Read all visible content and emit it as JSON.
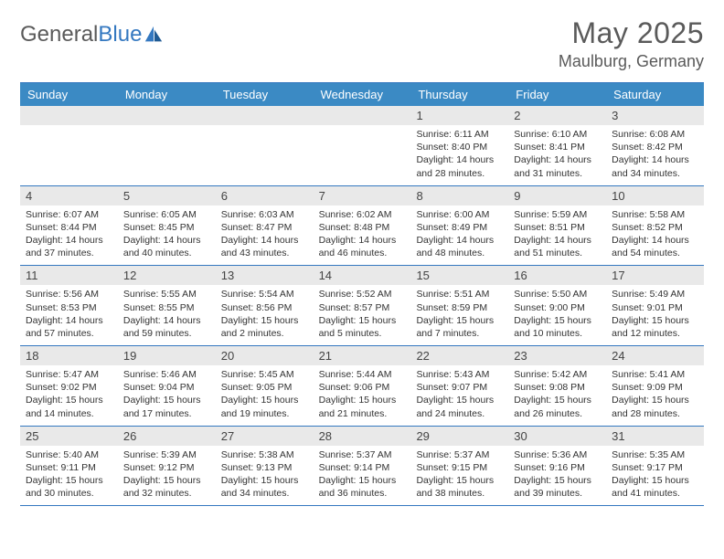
{
  "logo": {
    "part1": "General",
    "part2": "Blue"
  },
  "title": "May 2025",
  "location": "Maulburg, Germany",
  "colors": {
    "header_bg": "#3b8ac4",
    "rule": "#3478c0",
    "daynum_bg": "#e9e9e9",
    "text_muted": "#5a5a5a"
  },
  "weekdays": [
    "Sunday",
    "Monday",
    "Tuesday",
    "Wednesday",
    "Thursday",
    "Friday",
    "Saturday"
  ],
  "weeks": [
    [
      {
        "n": "",
        "sr": "",
        "ss": "",
        "dl": ""
      },
      {
        "n": "",
        "sr": "",
        "ss": "",
        "dl": ""
      },
      {
        "n": "",
        "sr": "",
        "ss": "",
        "dl": ""
      },
      {
        "n": "",
        "sr": "",
        "ss": "",
        "dl": ""
      },
      {
        "n": "1",
        "sr": "Sunrise: 6:11 AM",
        "ss": "Sunset: 8:40 PM",
        "dl": "Daylight: 14 hours and 28 minutes."
      },
      {
        "n": "2",
        "sr": "Sunrise: 6:10 AM",
        "ss": "Sunset: 8:41 PM",
        "dl": "Daylight: 14 hours and 31 minutes."
      },
      {
        "n": "3",
        "sr": "Sunrise: 6:08 AM",
        "ss": "Sunset: 8:42 PM",
        "dl": "Daylight: 14 hours and 34 minutes."
      }
    ],
    [
      {
        "n": "4",
        "sr": "Sunrise: 6:07 AM",
        "ss": "Sunset: 8:44 PM",
        "dl": "Daylight: 14 hours and 37 minutes."
      },
      {
        "n": "5",
        "sr": "Sunrise: 6:05 AM",
        "ss": "Sunset: 8:45 PM",
        "dl": "Daylight: 14 hours and 40 minutes."
      },
      {
        "n": "6",
        "sr": "Sunrise: 6:03 AM",
        "ss": "Sunset: 8:47 PM",
        "dl": "Daylight: 14 hours and 43 minutes."
      },
      {
        "n": "7",
        "sr": "Sunrise: 6:02 AM",
        "ss": "Sunset: 8:48 PM",
        "dl": "Daylight: 14 hours and 46 minutes."
      },
      {
        "n": "8",
        "sr": "Sunrise: 6:00 AM",
        "ss": "Sunset: 8:49 PM",
        "dl": "Daylight: 14 hours and 48 minutes."
      },
      {
        "n": "9",
        "sr": "Sunrise: 5:59 AM",
        "ss": "Sunset: 8:51 PM",
        "dl": "Daylight: 14 hours and 51 minutes."
      },
      {
        "n": "10",
        "sr": "Sunrise: 5:58 AM",
        "ss": "Sunset: 8:52 PM",
        "dl": "Daylight: 14 hours and 54 minutes."
      }
    ],
    [
      {
        "n": "11",
        "sr": "Sunrise: 5:56 AM",
        "ss": "Sunset: 8:53 PM",
        "dl": "Daylight: 14 hours and 57 minutes."
      },
      {
        "n": "12",
        "sr": "Sunrise: 5:55 AM",
        "ss": "Sunset: 8:55 PM",
        "dl": "Daylight: 14 hours and 59 minutes."
      },
      {
        "n": "13",
        "sr": "Sunrise: 5:54 AM",
        "ss": "Sunset: 8:56 PM",
        "dl": "Daylight: 15 hours and 2 minutes."
      },
      {
        "n": "14",
        "sr": "Sunrise: 5:52 AM",
        "ss": "Sunset: 8:57 PM",
        "dl": "Daylight: 15 hours and 5 minutes."
      },
      {
        "n": "15",
        "sr": "Sunrise: 5:51 AM",
        "ss": "Sunset: 8:59 PM",
        "dl": "Daylight: 15 hours and 7 minutes."
      },
      {
        "n": "16",
        "sr": "Sunrise: 5:50 AM",
        "ss": "Sunset: 9:00 PM",
        "dl": "Daylight: 15 hours and 10 minutes."
      },
      {
        "n": "17",
        "sr": "Sunrise: 5:49 AM",
        "ss": "Sunset: 9:01 PM",
        "dl": "Daylight: 15 hours and 12 minutes."
      }
    ],
    [
      {
        "n": "18",
        "sr": "Sunrise: 5:47 AM",
        "ss": "Sunset: 9:02 PM",
        "dl": "Daylight: 15 hours and 14 minutes."
      },
      {
        "n": "19",
        "sr": "Sunrise: 5:46 AM",
        "ss": "Sunset: 9:04 PM",
        "dl": "Daylight: 15 hours and 17 minutes."
      },
      {
        "n": "20",
        "sr": "Sunrise: 5:45 AM",
        "ss": "Sunset: 9:05 PM",
        "dl": "Daylight: 15 hours and 19 minutes."
      },
      {
        "n": "21",
        "sr": "Sunrise: 5:44 AM",
        "ss": "Sunset: 9:06 PM",
        "dl": "Daylight: 15 hours and 21 minutes."
      },
      {
        "n": "22",
        "sr": "Sunrise: 5:43 AM",
        "ss": "Sunset: 9:07 PM",
        "dl": "Daylight: 15 hours and 24 minutes."
      },
      {
        "n": "23",
        "sr": "Sunrise: 5:42 AM",
        "ss": "Sunset: 9:08 PM",
        "dl": "Daylight: 15 hours and 26 minutes."
      },
      {
        "n": "24",
        "sr": "Sunrise: 5:41 AM",
        "ss": "Sunset: 9:09 PM",
        "dl": "Daylight: 15 hours and 28 minutes."
      }
    ],
    [
      {
        "n": "25",
        "sr": "Sunrise: 5:40 AM",
        "ss": "Sunset: 9:11 PM",
        "dl": "Daylight: 15 hours and 30 minutes."
      },
      {
        "n": "26",
        "sr": "Sunrise: 5:39 AM",
        "ss": "Sunset: 9:12 PM",
        "dl": "Daylight: 15 hours and 32 minutes."
      },
      {
        "n": "27",
        "sr": "Sunrise: 5:38 AM",
        "ss": "Sunset: 9:13 PM",
        "dl": "Daylight: 15 hours and 34 minutes."
      },
      {
        "n": "28",
        "sr": "Sunrise: 5:37 AM",
        "ss": "Sunset: 9:14 PM",
        "dl": "Daylight: 15 hours and 36 minutes."
      },
      {
        "n": "29",
        "sr": "Sunrise: 5:37 AM",
        "ss": "Sunset: 9:15 PM",
        "dl": "Daylight: 15 hours and 38 minutes."
      },
      {
        "n": "30",
        "sr": "Sunrise: 5:36 AM",
        "ss": "Sunset: 9:16 PM",
        "dl": "Daylight: 15 hours and 39 minutes."
      },
      {
        "n": "31",
        "sr": "Sunrise: 5:35 AM",
        "ss": "Sunset: 9:17 PM",
        "dl": "Daylight: 15 hours and 41 minutes."
      }
    ]
  ]
}
